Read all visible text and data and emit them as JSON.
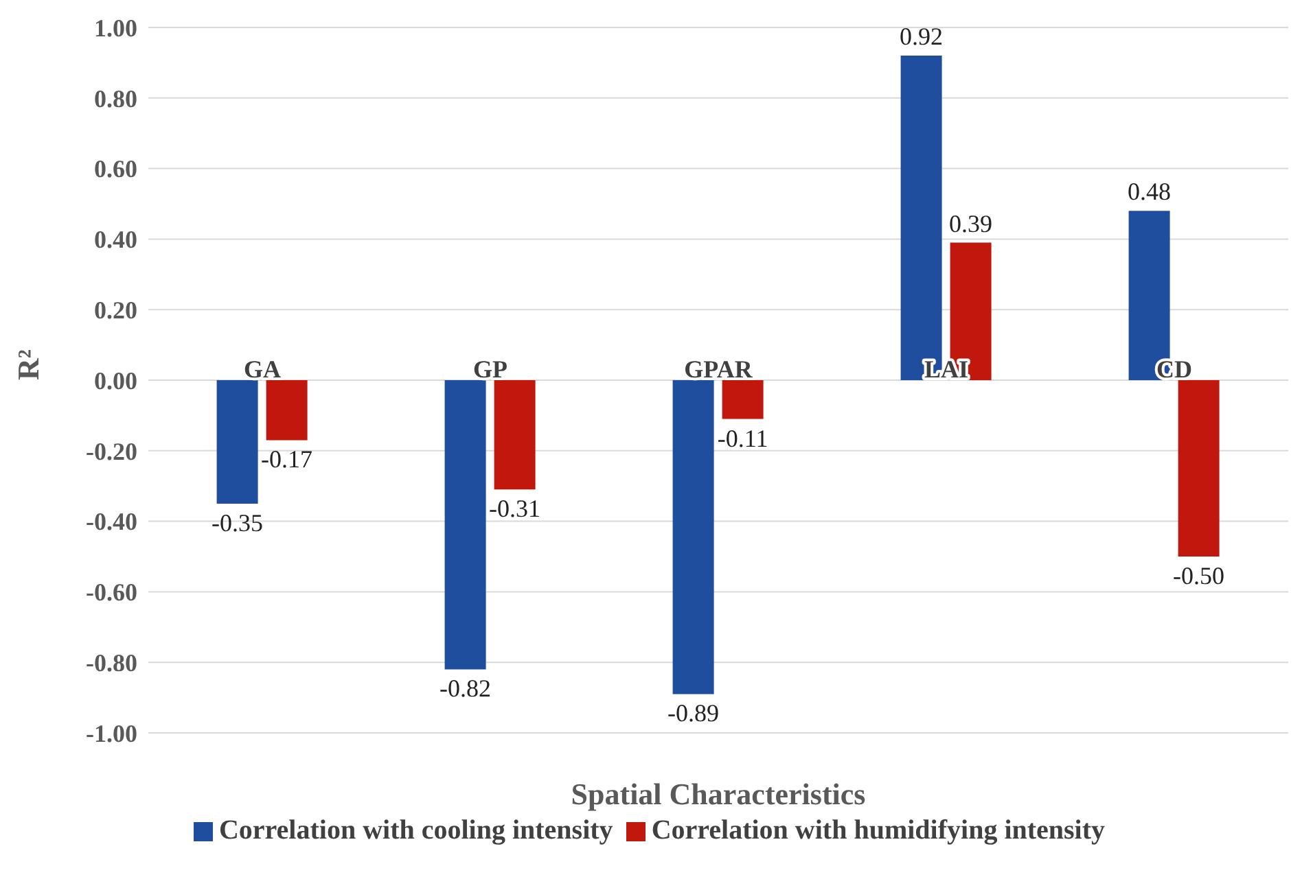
{
  "chart_data": {
    "type": "bar",
    "xlabel": "Spatial Characteristics",
    "ylabel": "R²",
    "categories": [
      "GA",
      "GP",
      "GPAR",
      "LAI",
      "CD"
    ],
    "series": [
      {
        "name": "Correlation with cooling intensity",
        "color": "#1f4e9e",
        "values": [
          -0.35,
          -0.82,
          -0.89,
          0.92,
          0.48
        ],
        "value_labels": [
          "-0.35",
          "-0.82",
          "-0.89",
          "0.92",
          "0.48"
        ]
      },
      {
        "name": "Correlation with humidifying intensity",
        "color": "#c0180c",
        "values": [
          -0.17,
          -0.31,
          -0.11,
          0.39,
          -0.5
        ],
        "value_labels": [
          "-0.17",
          "-0.31",
          "-0.11",
          "0.39",
          "-0.50"
        ]
      }
    ],
    "ylim": [
      -1,
      1
    ],
    "yticks": [
      {
        "value": -1,
        "label": "-1.00"
      },
      {
        "value": -0.8,
        "label": "-0.80"
      },
      {
        "value": -0.6,
        "label": "-0.60"
      },
      {
        "value": -0.4,
        "label": "-0.40"
      },
      {
        "value": -0.2,
        "label": "-0.20"
      },
      {
        "value": 0,
        "label": "0.00"
      },
      {
        "value": 0.2,
        "label": "0.20"
      },
      {
        "value": 0.4,
        "label": "0.40"
      },
      {
        "value": 0.6,
        "label": "0.60"
      },
      {
        "value": 0.8,
        "label": "0.80"
      },
      {
        "value": 1,
        "label": "1.00"
      }
    ],
    "grid": "y",
    "legend": "bottom"
  }
}
